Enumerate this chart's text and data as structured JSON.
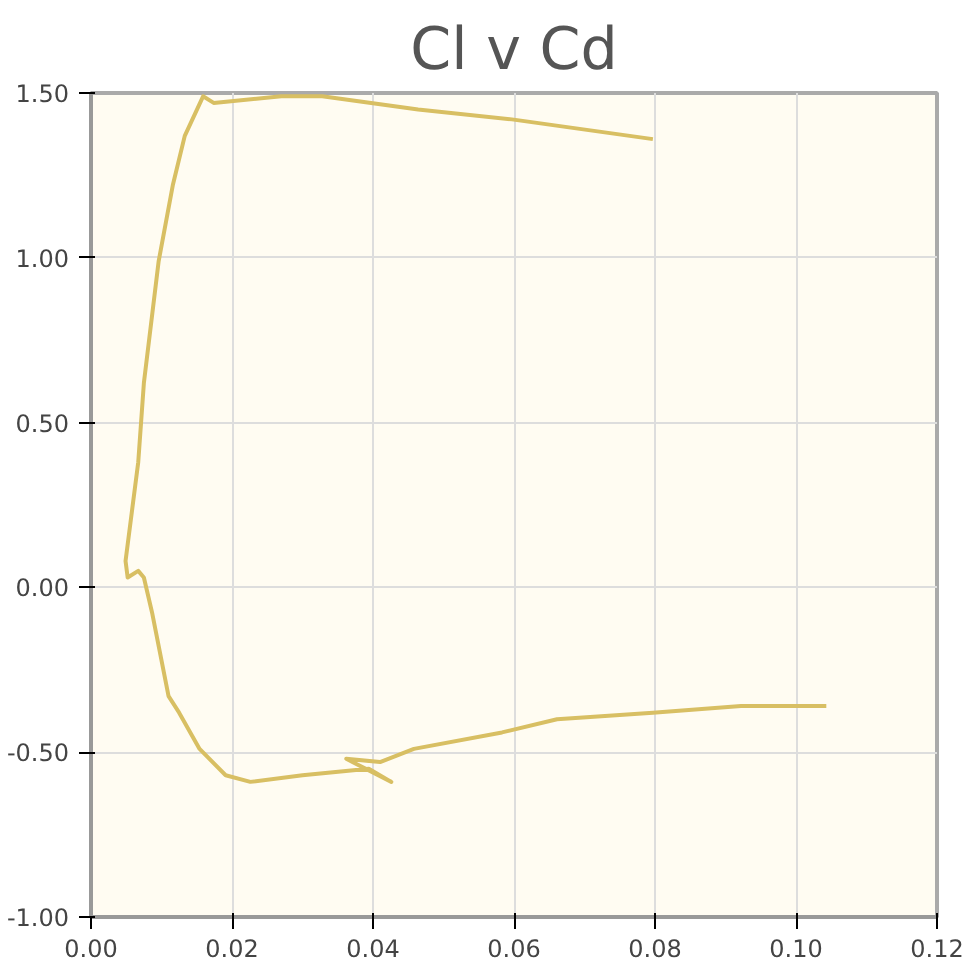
{
  "chart_data": {
    "type": "line",
    "title": "Cl v Cd",
    "xlim": [
      0,
      0.12
    ],
    "ylim": [
      -1,
      1.5
    ],
    "xticks": [
      {
        "value": 0,
        "label": "0.00"
      },
      {
        "value": 0.02,
        "label": "0.02"
      },
      {
        "value": 0.04,
        "label": "0.04"
      },
      {
        "value": 0.06,
        "label": "0.06"
      },
      {
        "value": 0.08,
        "label": "0.08"
      },
      {
        "value": 0.1,
        "label": "0.10"
      },
      {
        "value": 0.12,
        "label": "0.12"
      }
    ],
    "yticks": [
      {
        "value": -1,
        "label": "-1.00"
      },
      {
        "value": -0.5,
        "label": "-0.50"
      },
      {
        "value": 0,
        "label": "0.00"
      },
      {
        "value": 0.5,
        "label": "0.50"
      },
      {
        "value": 1,
        "label": "1.00"
      },
      {
        "value": 1.5,
        "label": "1.50"
      }
    ],
    "grid": true,
    "marker": "none",
    "line_style": "solid",
    "series": [
      {
        "color": "#d8bf63",
        "x": [
          0.1043,
          0.0922,
          0.0797,
          0.0661,
          0.0583,
          0.0458,
          0.041,
          0.0362,
          0.0426,
          0.0394,
          0.03,
          0.0226,
          0.0191,
          0.0154,
          0.0125,
          0.011,
          0.0087,
          0.0075,
          0.0067,
          0.0052,
          0.0049,
          0.0067,
          0.0075,
          0.0096,
          0.0116,
          0.0133,
          0.0159,
          0.0174,
          0.027,
          0.0328,
          0.0464,
          0.0597,
          0.0797
        ],
        "values": [
          -0.36,
          -0.36,
          -0.38,
          -0.4,
          -0.44,
          -0.49,
          -0.53,
          -0.52,
          -0.59,
          -0.55,
          -0.57,
          -0.59,
          -0.57,
          -0.49,
          -0.38,
          -0.33,
          -0.08,
          0.03,
          0.05,
          0.03,
          0.08,
          0.38,
          0.62,
          0.99,
          1.22,
          1.37,
          1.49,
          1.47,
          1.49,
          1.49,
          1.45,
          1.42,
          1.36
        ]
      }
    ]
  }
}
